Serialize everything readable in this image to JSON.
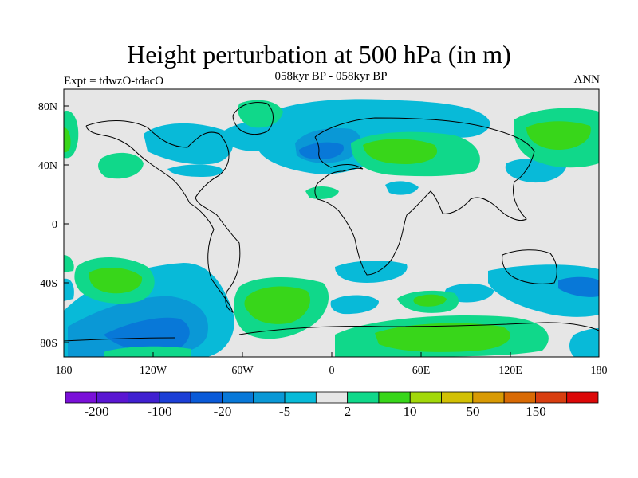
{
  "title": "Height perturbation at 500 hPa (in m)",
  "subtitle": "058kyr BP - 058kyr BP",
  "left_label": "Expt = tdwzO-tdacO",
  "right_label": "ANN",
  "lat_ticks": [
    "80N",
    "40N",
    "0",
    "40S",
    "80S"
  ],
  "lon_ticks": [
    "180",
    "120W",
    "60W",
    "0",
    "60E",
    "120E",
    "180"
  ],
  "colorbar": {
    "colors": [
      "#7a10d8",
      "#5a16d2",
      "#4020d0",
      "#1c3fd6",
      "#0a5ad8",
      "#0878d8",
      "#0a98d6",
      "#08bad8",
      "#e6e6e6",
      "#10d88a",
      "#38d61a",
      "#a2d80a",
      "#d2c004",
      "#d89a04",
      "#d86a04",
      "#d83e10",
      "#dc0808"
    ],
    "labels": [
      "-200",
      "-100",
      "-20",
      "-5",
      "2",
      "10",
      "50",
      "150"
    ]
  },
  "colors": {
    "background": "#e6e6e6",
    "light_blue": "#08bad8",
    "mid_blue": "#0878d8",
    "dark_blue": "#0a5ad8",
    "light_green": "#10d88a",
    "green": "#38d61a"
  }
}
